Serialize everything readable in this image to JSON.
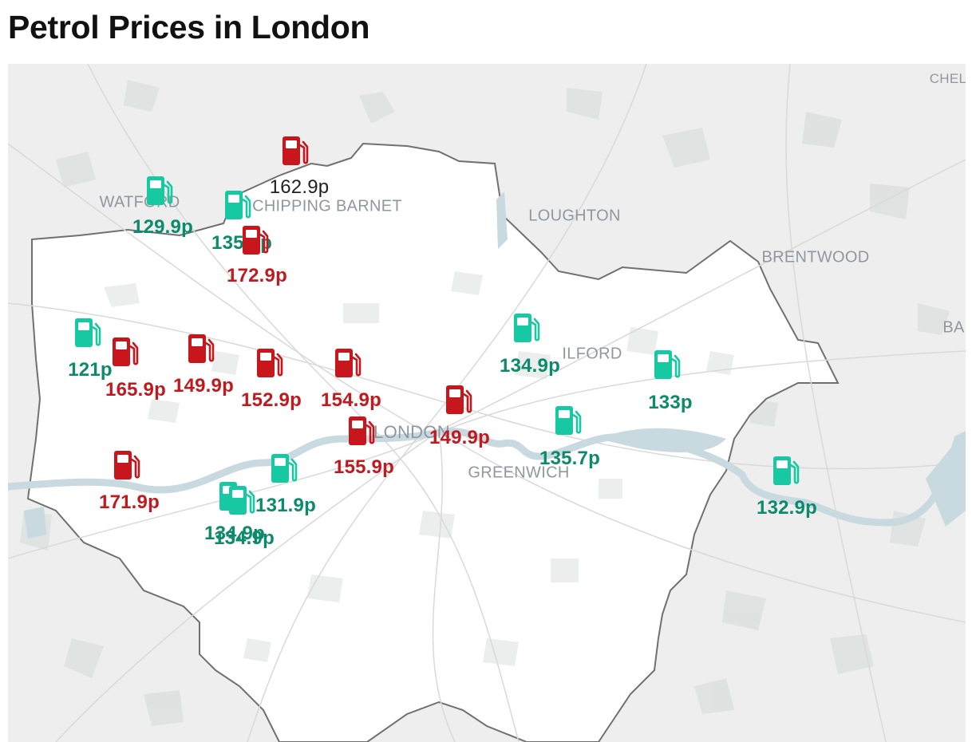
{
  "title": "Petrol Prices in London",
  "colors": {
    "cheap": "#17c9a3",
    "cheap_text": "#0c8a6c",
    "expensive": "#c8161d",
    "expensive_text": "#c01a1f",
    "water": "#c9d9e0",
    "land": "#eeeeee",
    "london": "#ffffff"
  },
  "map": {
    "labels": [
      {
        "id": "watford",
        "text": "WATFORD"
      },
      {
        "id": "chipping-barnet",
        "text": "CHIPPING BARNET"
      },
      {
        "id": "loughton",
        "text": "LOUGHTON"
      },
      {
        "id": "brentwood",
        "text": "BRENTWOOD"
      },
      {
        "id": "ilford",
        "text": "ILFORD"
      },
      {
        "id": "london",
        "text": "LONDON"
      },
      {
        "id": "greenwich",
        "text": "GREENWICH"
      },
      {
        "id": "chelmsford",
        "text": "CHEL"
      },
      {
        "id": "basildon",
        "text": "BA"
      }
    ],
    "stations": [
      {
        "id": "s1",
        "price": "162.9p",
        "tier": "expensive",
        "label_style": "plain"
      },
      {
        "id": "s2",
        "price": "129.9p",
        "tier": "cheap"
      },
      {
        "id": "s3",
        "price": "135.7p",
        "tier": "cheap"
      },
      {
        "id": "s4",
        "price": "172.9p",
        "tier": "expensive"
      },
      {
        "id": "s5",
        "price": "121p",
        "tier": "cheap"
      },
      {
        "id": "s6",
        "price": "165.9p",
        "tier": "expensive"
      },
      {
        "id": "s7",
        "price": "149.9p",
        "tier": "expensive"
      },
      {
        "id": "s8",
        "price": "152.9p",
        "tier": "expensive"
      },
      {
        "id": "s9",
        "price": "154.9p",
        "tier": "expensive"
      },
      {
        "id": "s10",
        "price": "155.9p",
        "tier": "expensive"
      },
      {
        "id": "s11",
        "price": "149.9p",
        "tier": "expensive"
      },
      {
        "id": "s12",
        "price": "134.9p",
        "tier": "cheap"
      },
      {
        "id": "s13",
        "price": "133p",
        "tier": "cheap"
      },
      {
        "id": "s14",
        "price": "135.7p",
        "tier": "cheap"
      },
      {
        "id": "s15",
        "price": "132.9p",
        "tier": "cheap"
      },
      {
        "id": "s16",
        "price": "171.9p",
        "tier": "expensive"
      },
      {
        "id": "s17",
        "price": "131.9p",
        "tier": "cheap"
      },
      {
        "id": "s18",
        "price": "134.9p",
        "tier": "cheap"
      },
      {
        "id": "s19",
        "price": "134.9p",
        "tier": "cheap"
      }
    ]
  }
}
